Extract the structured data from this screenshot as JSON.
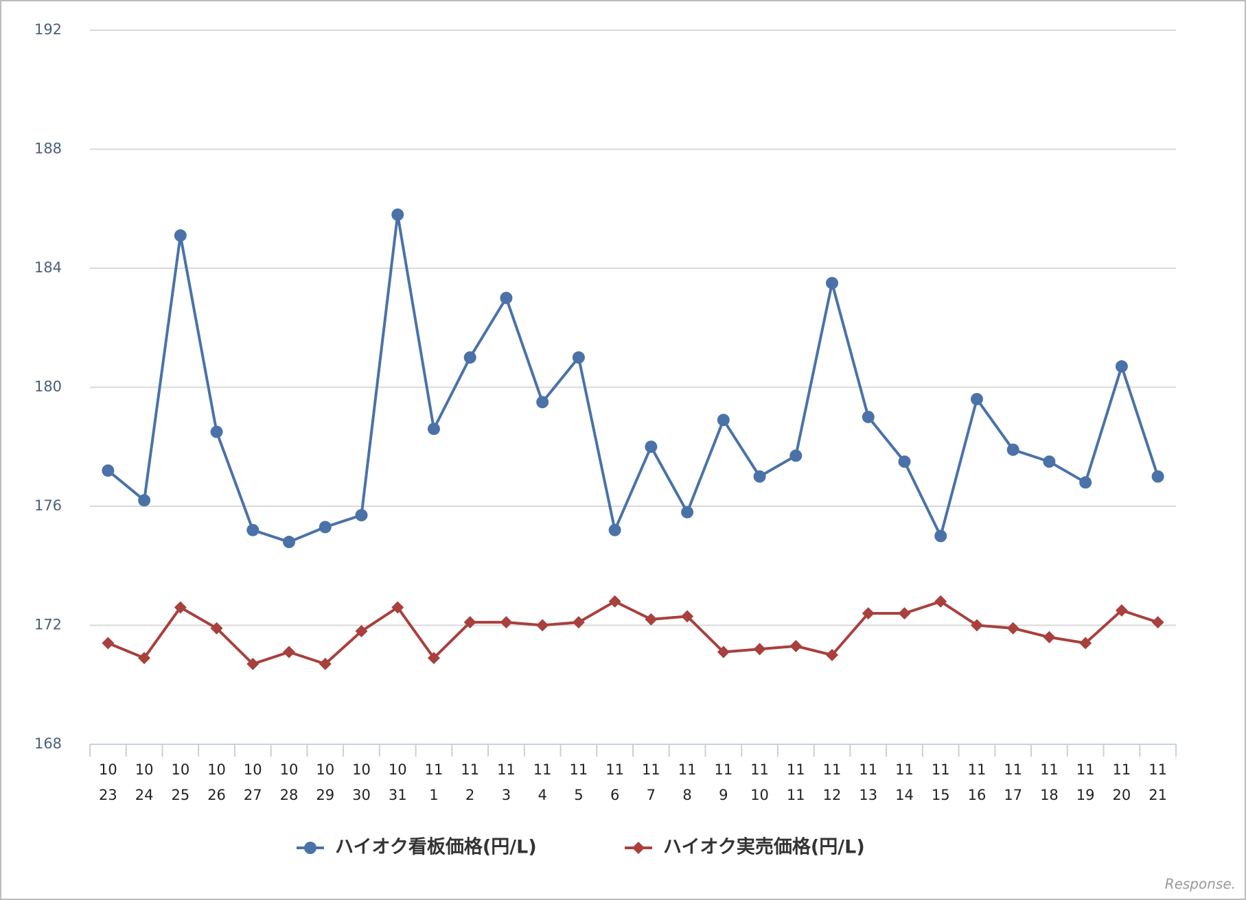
{
  "chart_data": {
    "type": "line",
    "categories": [
      [
        "10",
        "23"
      ],
      [
        "10",
        "24"
      ],
      [
        "10",
        "25"
      ],
      [
        "10",
        "26"
      ],
      [
        "10",
        "27"
      ],
      [
        "10",
        "28"
      ],
      [
        "10",
        "29"
      ],
      [
        "10",
        "30"
      ],
      [
        "10",
        "31"
      ],
      [
        "11",
        "1"
      ],
      [
        "11",
        "2"
      ],
      [
        "11",
        "3"
      ],
      [
        "11",
        "4"
      ],
      [
        "11",
        "5"
      ],
      [
        "11",
        "6"
      ],
      [
        "11",
        "7"
      ],
      [
        "11",
        "8"
      ],
      [
        "11",
        "9"
      ],
      [
        "11",
        "10"
      ],
      [
        "11",
        "11"
      ],
      [
        "11",
        "12"
      ],
      [
        "11",
        "13"
      ],
      [
        "11",
        "14"
      ],
      [
        "11",
        "15"
      ],
      [
        "11",
        "16"
      ],
      [
        "11",
        "17"
      ],
      [
        "11",
        "18"
      ],
      [
        "11",
        "19"
      ],
      [
        "11",
        "20"
      ],
      [
        "11",
        "21"
      ]
    ],
    "series": [
      {
        "name": "ハイオク看板価格(円/L)",
        "color": "#4a72a8",
        "marker": "circle",
        "values": [
          177.2,
          176.2,
          185.1,
          178.5,
          175.2,
          174.8,
          175.3,
          175.7,
          185.8,
          178.6,
          181.0,
          183.0,
          179.5,
          181.0,
          175.2,
          178.0,
          175.8,
          178.9,
          177.0,
          177.7,
          183.5,
          179.0,
          177.5,
          175.0,
          179.6,
          177.9,
          177.5,
          176.8,
          180.7,
          177.0
        ]
      },
      {
        "name": "ハイオク実売価格(円/L)",
        "color": "#a8403d",
        "marker": "diamond",
        "values": [
          171.4,
          170.9,
          172.6,
          171.9,
          170.7,
          171.1,
          170.7,
          171.8,
          172.6,
          170.9,
          172.1,
          172.1,
          172.0,
          172.1,
          172.8,
          172.2,
          172.3,
          171.1,
          171.2,
          171.3,
          171.0,
          172.4,
          172.4,
          172.8,
          172.0,
          171.9,
          171.6,
          171.4,
          172.5,
          172.1
        ]
      }
    ],
    "ylim": [
      168,
      192
    ],
    "yticks": [
      168,
      172,
      176,
      180,
      184,
      188,
      192
    ],
    "grid": true,
    "legend": "bottom",
    "watermark": "Response."
  }
}
